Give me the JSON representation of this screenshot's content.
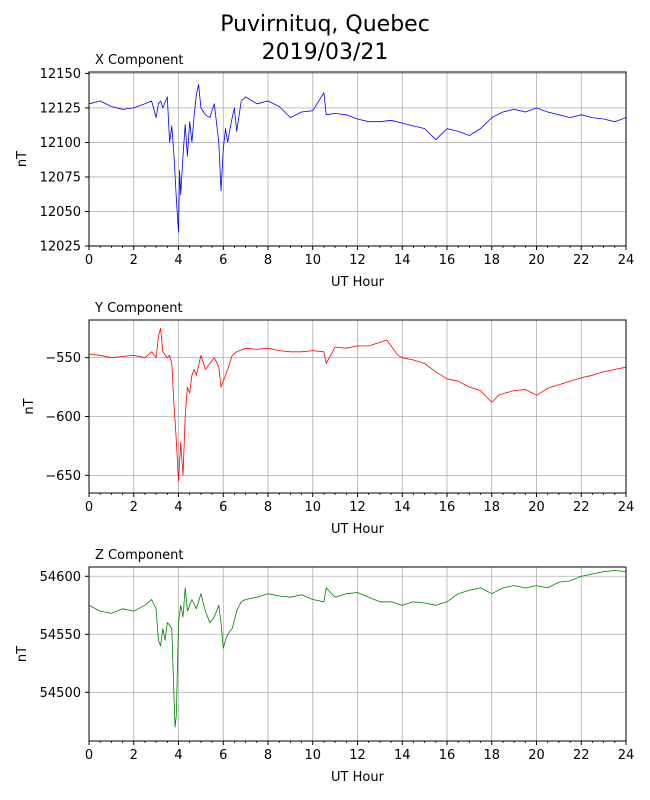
{
  "title_line1": "Puvirnituq, Quebec",
  "title_line2": "2019/03/21",
  "chart_data": [
    {
      "type": "line",
      "title": "X Component",
      "xlabel": "UT Hour",
      "ylabel": "nT",
      "xlim": [
        0,
        24
      ],
      "ylim": [
        12025,
        12151
      ],
      "xticks": [
        0,
        2,
        4,
        6,
        8,
        10,
        12,
        14,
        16,
        18,
        20,
        22,
        24
      ],
      "yticks": [
        12025,
        12050,
        12075,
        12100,
        12125,
        12150
      ],
      "grid": true,
      "color": "#0000ff",
      "x": [
        0,
        0.5,
        1,
        1.5,
        2,
        2.5,
        2.8,
        3.0,
        3.1,
        3.2,
        3.3,
        3.5,
        3.6,
        3.7,
        3.8,
        3.9,
        4.0,
        4.05,
        4.1,
        4.2,
        4.3,
        4.4,
        4.5,
        4.6,
        4.7,
        4.8,
        4.9,
        5.0,
        5.2,
        5.4,
        5.6,
        5.8,
        5.9,
        6.0,
        6.1,
        6.2,
        6.3,
        6.4,
        6.5,
        6.6,
        6.8,
        7.0,
        7.5,
        8.0,
        8.5,
        9.0,
        9.5,
        10.0,
        10.5,
        10.6,
        11.0,
        11.5,
        12.0,
        12.5,
        13.0,
        13.5,
        14.0,
        14.5,
        15.0,
        15.5,
        16.0,
        16.5,
        17.0,
        17.5,
        18.0,
        18.5,
        19.0,
        19.5,
        20.0,
        20.5,
        21.0,
        21.5,
        22.0,
        22.5,
        23.0,
        23.5,
        24.0
      ],
      "y": [
        12128,
        12130,
        12126,
        12124,
        12125,
        12128,
        12130,
        12118,
        12128,
        12130,
        12125,
        12133,
        12100,
        12112,
        12090,
        12060,
        12035,
        12080,
        12062,
        12090,
        12113,
        12090,
        12115,
        12100,
        12120,
        12135,
        12142,
        12125,
        12120,
        12118,
        12128,
        12100,
        12065,
        12095,
        12110,
        12100,
        12110,
        12118,
        12125,
        12108,
        12130,
        12133,
        12128,
        12130,
        12126,
        12118,
        12122,
        12123,
        12136,
        12120,
        12121,
        12120,
        12117,
        12115,
        12115,
        12116,
        12114,
        12112,
        12110,
        12102,
        12110,
        12108,
        12105,
        12110,
        12118,
        12122,
        12124,
        12122,
        12125,
        12122,
        12120,
        12118,
        12120,
        12118,
        12117,
        12115,
        12118
      ]
    },
    {
      "type": "line",
      "title": "Y Component",
      "xlabel": "UT Hour",
      "ylabel": "nT",
      "xlim": [
        0,
        24
      ],
      "ylim": [
        -665,
        -518
      ],
      "xticks": [
        0,
        2,
        4,
        6,
        8,
        10,
        12,
        14,
        16,
        18,
        20,
        22,
        24
      ],
      "yticks": [
        -650,
        -600,
        -550
      ],
      "grid": true,
      "color": "#ff0000",
      "x": [
        0,
        0.5,
        1,
        1.5,
        2,
        2.5,
        2.8,
        3.0,
        3.1,
        3.2,
        3.3,
        3.5,
        3.6,
        3.7,
        3.8,
        3.9,
        4.0,
        4.1,
        4.2,
        4.3,
        4.4,
        4.5,
        4.6,
        4.7,
        4.8,
        5.0,
        5.2,
        5.4,
        5.6,
        5.8,
        5.9,
        6.0,
        6.2,
        6.4,
        6.6,
        7.0,
        7.5,
        8.0,
        8.5,
        9.0,
        9.5,
        10.0,
        10.5,
        10.6,
        11.0,
        11.5,
        12.0,
        12.5,
        13.0,
        13.3,
        13.5,
        13.8,
        14.0,
        14.5,
        15.0,
        15.5,
        16.0,
        16.5,
        17.0,
        17.5,
        18.0,
        18.3,
        18.6,
        19.0,
        19.5,
        20.0,
        20.5,
        21.0,
        21.5,
        22.0,
        22.5,
        23.0,
        23.5,
        24.0
      ],
      "y": [
        -547,
        -548,
        -550,
        -549,
        -548,
        -550,
        -545,
        -550,
        -532,
        -525,
        -545,
        -550,
        -548,
        -555,
        -590,
        -620,
        -655,
        -622,
        -650,
        -600,
        -575,
        -580,
        -565,
        -560,
        -565,
        -548,
        -560,
        -555,
        -550,
        -558,
        -575,
        -570,
        -560,
        -548,
        -545,
        -542,
        -543,
        -542,
        -544,
        -545,
        -545,
        -544,
        -545,
        -555,
        -541,
        -542,
        -540,
        -540,
        -537,
        -535,
        -540,
        -548,
        -550,
        -552,
        -555,
        -562,
        -568,
        -570,
        -575,
        -578,
        -588,
        -582,
        -580,
        -578,
        -577,
        -582,
        -576,
        -573,
        -570,
        -567,
        -565,
        -562,
        -560,
        -558
      ]
    },
    {
      "type": "line",
      "title": "Z Component",
      "xlabel": "UT Hour",
      "ylabel": "nT",
      "xlim": [
        0,
        24
      ],
      "ylim": [
        54458,
        54608
      ],
      "xticks": [
        0,
        2,
        4,
        6,
        8,
        10,
        12,
        14,
        16,
        18,
        20,
        22,
        24
      ],
      "yticks": [
        54500,
        54550,
        54600
      ],
      "grid": true,
      "color": "#008000",
      "x": [
        0,
        0.5,
        1,
        1.5,
        2,
        2.5,
        2.8,
        3.0,
        3.1,
        3.2,
        3.3,
        3.4,
        3.5,
        3.6,
        3.7,
        3.8,
        3.85,
        3.9,
        4.0,
        4.1,
        4.2,
        4.3,
        4.4,
        4.5,
        4.6,
        4.8,
        5.0,
        5.2,
        5.4,
        5.6,
        5.8,
        5.9,
        6.0,
        6.1,
        6.2,
        6.4,
        6.6,
        6.8,
        7.0,
        7.5,
        8.0,
        8.5,
        9.0,
        9.5,
        10.0,
        10.5,
        10.6,
        11.0,
        11.5,
        12.0,
        12.5,
        13.0,
        13.5,
        14.0,
        14.5,
        15.0,
        15.5,
        16.0,
        16.5,
        17.0,
        17.5,
        18.0,
        18.5,
        19.0,
        19.5,
        20.0,
        20.5,
        21.0,
        21.5,
        22.0,
        22.5,
        23.0,
        23.5,
        24.0
      ],
      "y": [
        54575,
        54570,
        54568,
        54572,
        54570,
        54575,
        54580,
        54572,
        54545,
        54540,
        54555,
        54545,
        54560,
        54558,
        54555,
        54495,
        54470,
        54480,
        54560,
        54575,
        54565,
        54590,
        54570,
        54575,
        54580,
        54572,
        54585,
        54570,
        54560,
        54565,
        54575,
        54560,
        54538,
        54545,
        54550,
        54555,
        54570,
        54578,
        54580,
        54582,
        54585,
        54583,
        54582,
        54584,
        54580,
        54578,
        54590,
        54582,
        54585,
        54586,
        54582,
        54578,
        54578,
        54575,
        54578,
        54577,
        54575,
        54578,
        54585,
        54588,
        54590,
        54585,
        54590,
        54592,
        54590,
        54592,
        54590,
        54595,
        54596,
        54600,
        54602,
        54604,
        54605,
        54604
      ]
    }
  ]
}
